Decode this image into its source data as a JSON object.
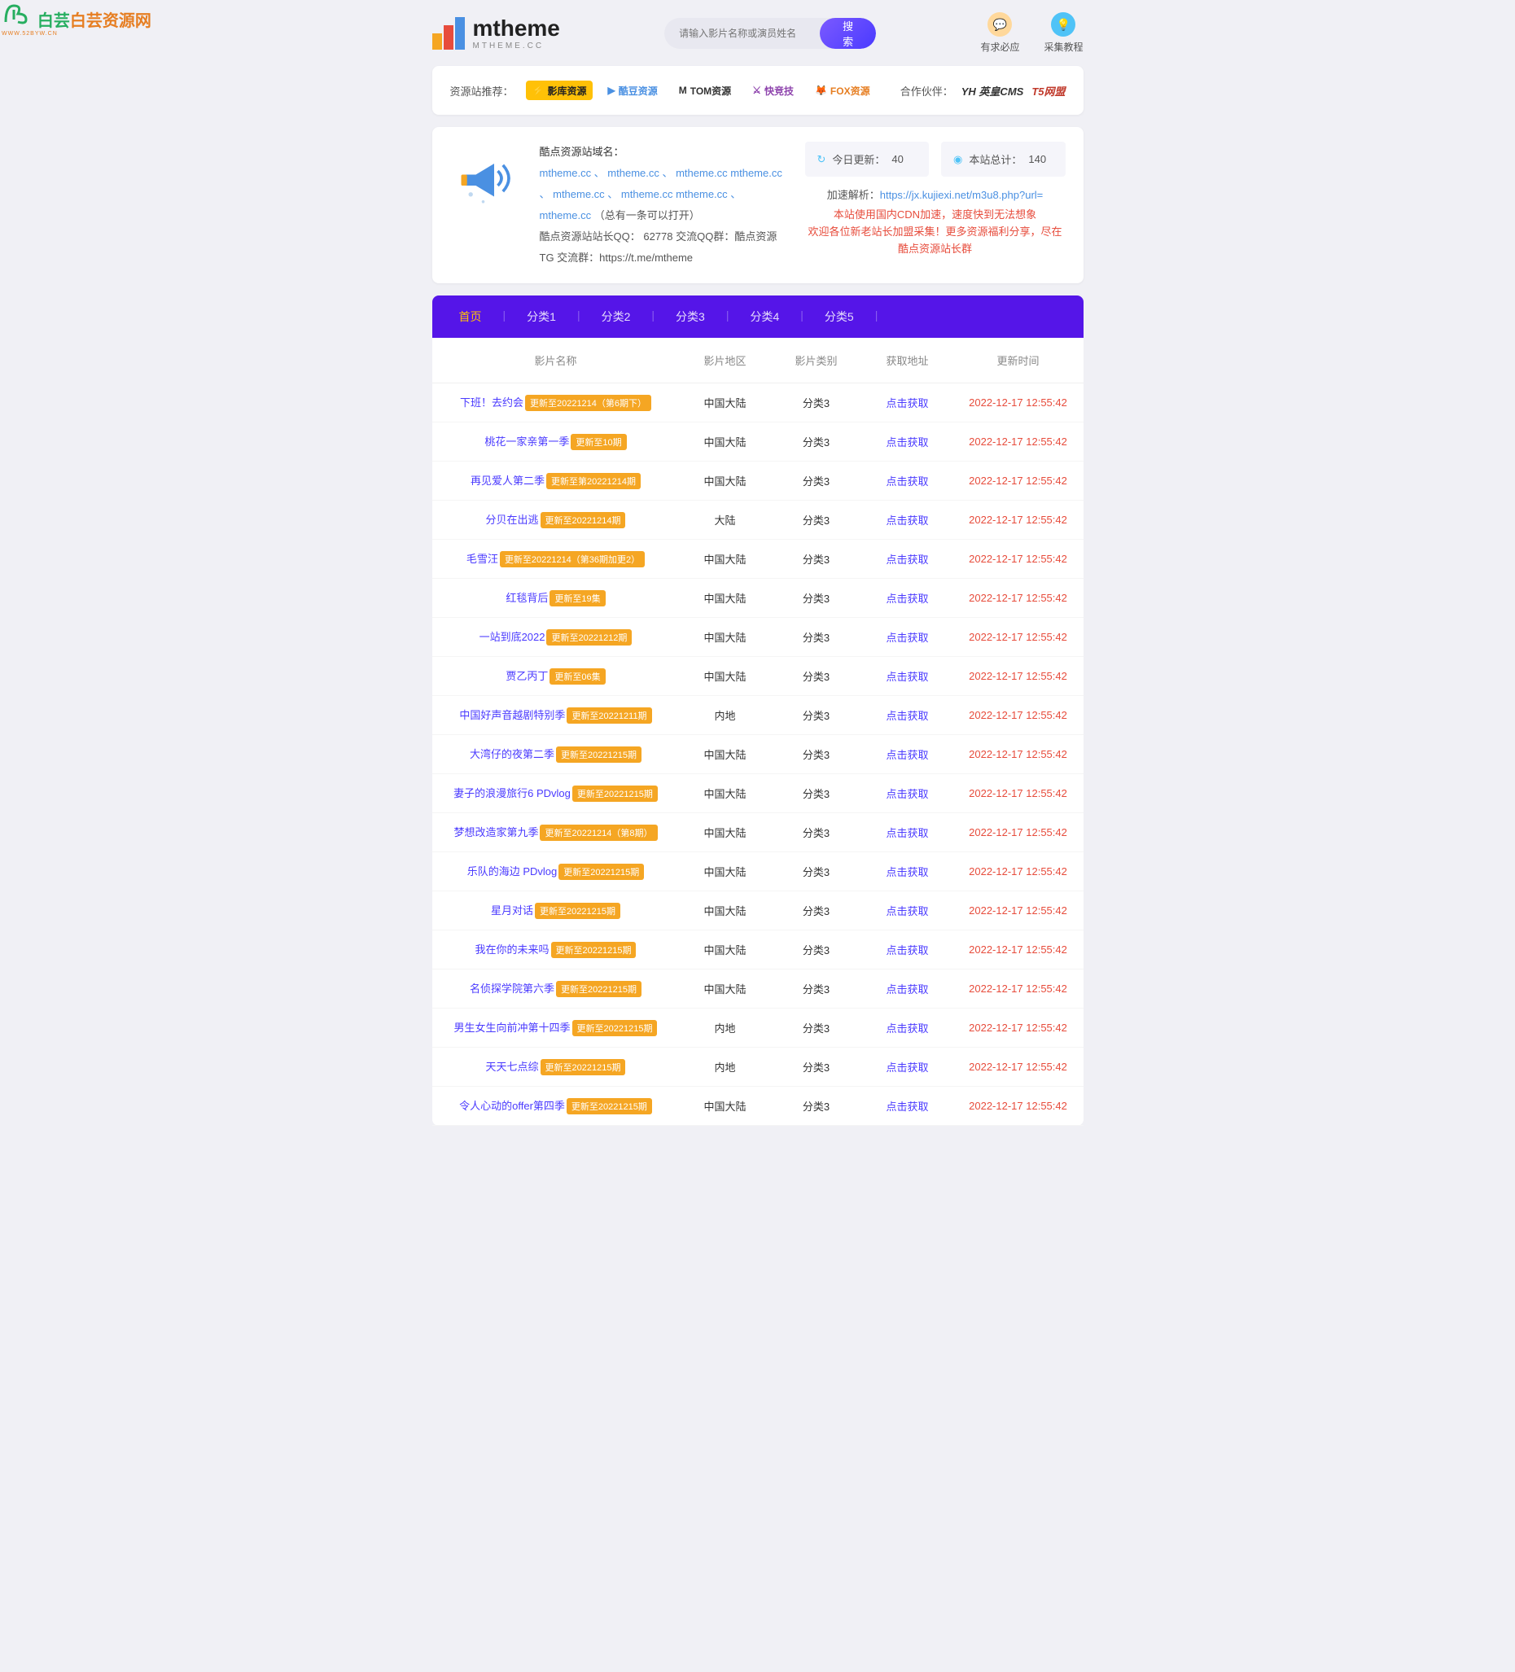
{
  "watermark": {
    "main": "白芸资源网",
    "sub": "WWW.52BYW.CN",
    "colors": [
      "#27ae60",
      "#e67e22"
    ]
  },
  "logo": {
    "text": "mtheme",
    "sub": "MTHEME.CC"
  },
  "search": {
    "placeholder": "请输入影片名称或演员姓名",
    "button": "搜索"
  },
  "headerIcons": [
    {
      "name": "demand-icon",
      "label": "有求必应",
      "emoji": "💬",
      "bg": "icon-orange"
    },
    {
      "name": "tutorial-icon",
      "label": "采集教程",
      "emoji": "💡",
      "bg": "icon-blue"
    }
  ],
  "recommend": {
    "label": "资源站推荐：",
    "items": [
      {
        "text": "影库资源",
        "cls": "badge-yellow",
        "icon": "⚡"
      },
      {
        "text": "酷豆资源",
        "cls": "badge-blue",
        "icon": "▶"
      },
      {
        "text": "TOM资源",
        "cls": "badge-dark",
        "icon": "M"
      },
      {
        "text": "快竞技",
        "cls": "badge-purple",
        "icon": "⚔"
      },
      {
        "text": "FOX资源",
        "cls": "badge-orange",
        "icon": "🦊"
      }
    ],
    "partnerLabel": "合作伙伴：",
    "partners": [
      {
        "text": "YH 英皇CMS",
        "color": "#333"
      },
      {
        "text": "T5网盟",
        "color": "#c0392b"
      }
    ]
  },
  "info": {
    "domainLabel": "酷点资源站域名：",
    "domains": "mtheme.cc 、 mtheme.cc 、 mtheme.cc mtheme.cc 、 mtheme.cc 、 mtheme.cc mtheme.cc 、 mtheme.cc",
    "domainsSuffix": " （总有一条可以打开）",
    "qqLine": "酷点资源站站长QQ： 62778 交流QQ群：酷点资源 TG 交流群：https://t.me/mtheme"
  },
  "stats": {
    "today": {
      "label": "今日更新：",
      "value": "40"
    },
    "total": {
      "label": "本站总计：",
      "value": "140"
    }
  },
  "parse": {
    "label": "加速解析：",
    "url": "https://jx.kujiexi.net/m3u8.php?url="
  },
  "redLines": [
    "本站使用国内CDN加速，速度快到无法想象",
    "欢迎各位新老站长加盟采集！更多资源福利分享，尽在酷点资源站长群"
  ],
  "nav": [
    "首页",
    "分类1",
    "分类2",
    "分类3",
    "分类4",
    "分类5"
  ],
  "navActive": 0,
  "columns": [
    "影片名称",
    "影片地区",
    "影片类别",
    "获取地址",
    "更新时间"
  ],
  "getLabel": "点击获取",
  "rows": [
    {
      "name": "下班！去约会",
      "tag": "更新至20221214（第6期下）",
      "region": "中国大陆",
      "type": "分类3",
      "time": "2022-12-17 12:55:42"
    },
    {
      "name": "桃花一家亲第一季",
      "tag": "更新至10期",
      "region": "中国大陆",
      "type": "分类3",
      "time": "2022-12-17 12:55:42"
    },
    {
      "name": "再见爱人第二季",
      "tag": "更新至第20221214期",
      "region": "中国大陆",
      "type": "分类3",
      "time": "2022-12-17 12:55:42"
    },
    {
      "name": "分贝在出逃",
      "tag": "更新至20221214期",
      "region": "大陆",
      "type": "分类3",
      "time": "2022-12-17 12:55:42"
    },
    {
      "name": "毛雪汪",
      "tag": "更新至20221214（第36期加更2）",
      "region": "中国大陆",
      "type": "分类3",
      "time": "2022-12-17 12:55:42"
    },
    {
      "name": "红毯背后",
      "tag": "更新至19集",
      "region": "中国大陆",
      "type": "分类3",
      "time": "2022-12-17 12:55:42"
    },
    {
      "name": "一站到底2022",
      "tag": "更新至20221212期",
      "region": "中国大陆",
      "type": "分类3",
      "time": "2022-12-17 12:55:42"
    },
    {
      "name": "贾乙丙丁",
      "tag": "更新至06集",
      "region": "中国大陆",
      "type": "分类3",
      "time": "2022-12-17 12:55:42"
    },
    {
      "name": "中国好声音越剧特别季",
      "tag": "更新至20221211期",
      "region": "内地",
      "type": "分类3",
      "time": "2022-12-17 12:55:42"
    },
    {
      "name": "大湾仔的夜第二季",
      "tag": "更新至20221215期",
      "region": "中国大陆",
      "type": "分类3",
      "time": "2022-12-17 12:55:42"
    },
    {
      "name": "妻子的浪漫旅行6 PDvlog",
      "tag": "更新至20221215期",
      "region": "中国大陆",
      "type": "分类3",
      "time": "2022-12-17 12:55:42"
    },
    {
      "name": "梦想改造家第九季",
      "tag": "更新至20221214（第8期）",
      "region": "中国大陆",
      "type": "分类3",
      "time": "2022-12-17 12:55:42"
    },
    {
      "name": "乐队的海边 PDvlog",
      "tag": "更新至20221215期",
      "region": "中国大陆",
      "type": "分类3",
      "time": "2022-12-17 12:55:42"
    },
    {
      "name": "星月对话",
      "tag": "更新至20221215期",
      "region": "中国大陆",
      "type": "分类3",
      "time": "2022-12-17 12:55:42"
    },
    {
      "name": "我在你的未来吗",
      "tag": "更新至20221215期",
      "region": "中国大陆",
      "type": "分类3",
      "time": "2022-12-17 12:55:42"
    },
    {
      "name": "名侦探学院第六季",
      "tag": "更新至20221215期",
      "region": "中国大陆",
      "type": "分类3",
      "time": "2022-12-17 12:55:42"
    },
    {
      "name": "男生女生向前冲第十四季",
      "tag": "更新至20221215期",
      "region": "内地",
      "type": "分类3",
      "time": "2022-12-17 12:55:42"
    },
    {
      "name": "天天七点综",
      "tag": "更新至20221215期",
      "region": "内地",
      "type": "分类3",
      "time": "2022-12-17 12:55:42"
    },
    {
      "name": "令人心动的offer第四季",
      "tag": "更新至20221215期",
      "region": "中国大陆",
      "type": "分类3",
      "time": "2022-12-17 12:55:42"
    }
  ]
}
